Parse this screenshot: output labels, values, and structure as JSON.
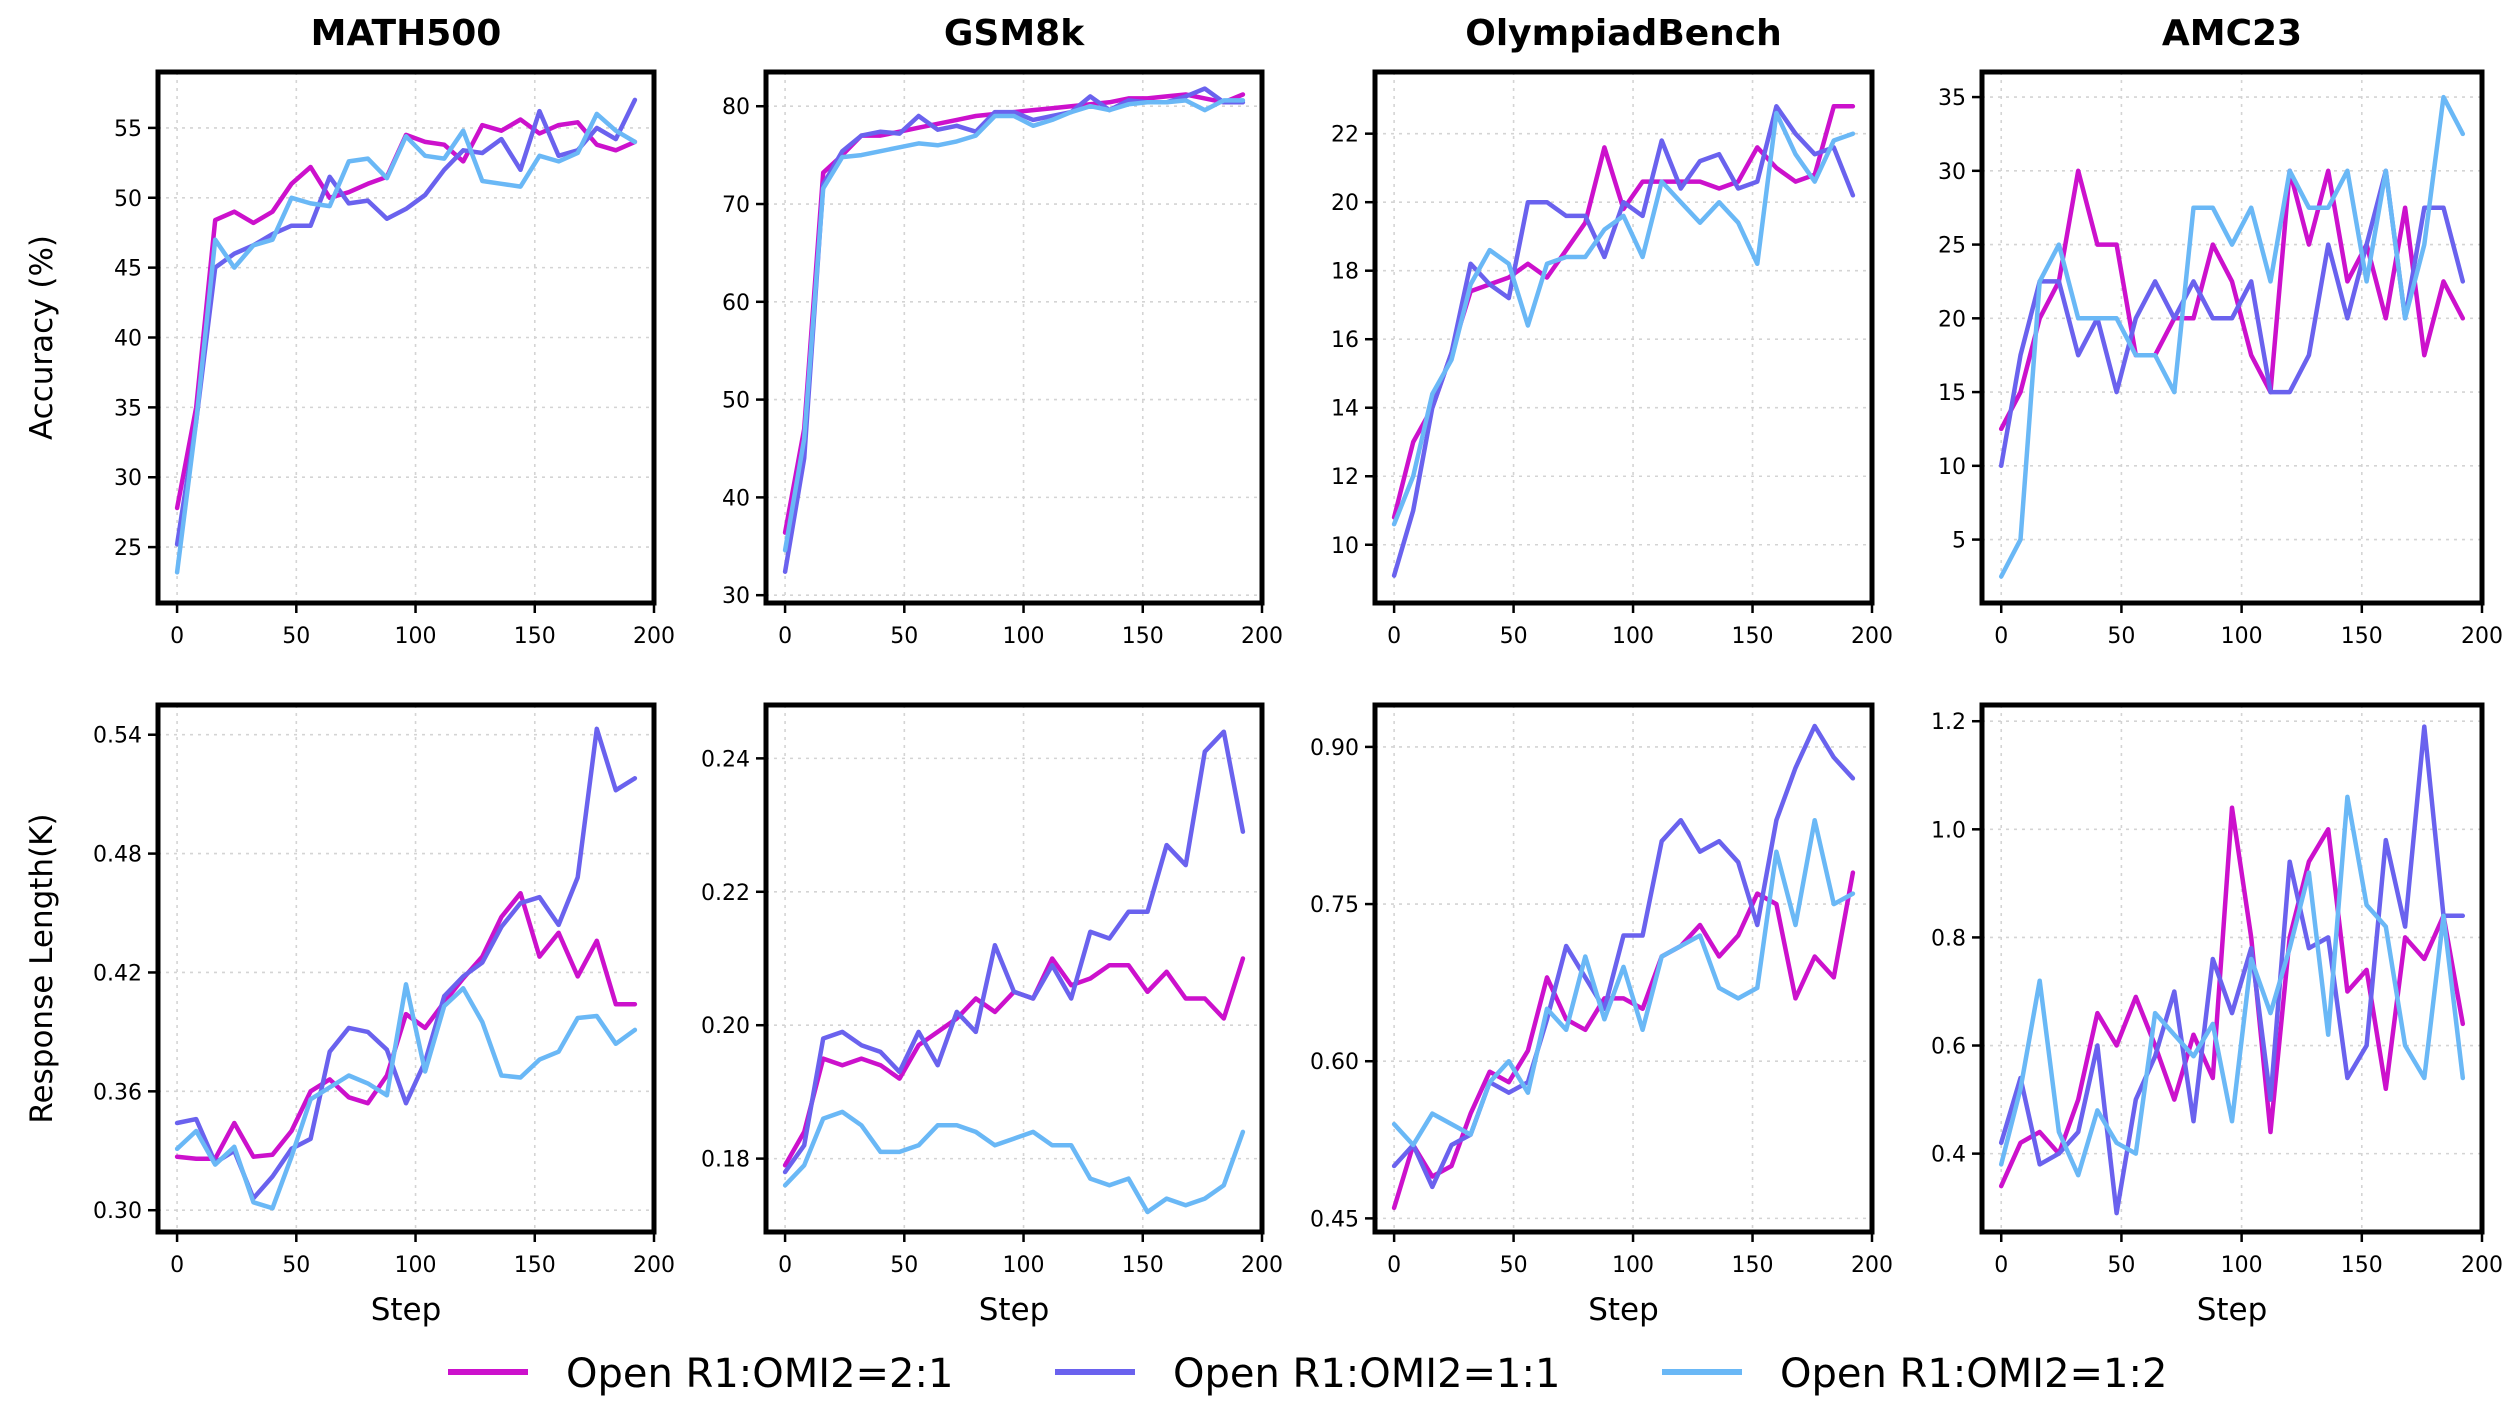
{
  "colors": {
    "r21": "#cc11cc",
    "r11": "#6a62ee",
    "r12": "#6ab8f6"
  },
  "legend": [
    {
      "key": "r21",
      "label": "Open R1:OMI2=2:1"
    },
    {
      "key": "r11",
      "label": "Open R1:OMI2=1:1"
    },
    {
      "key": "r12",
      "label": "Open R1:OMI2=1:2"
    }
  ],
  "chart_data": [
    {
      "id": "acc-math500",
      "type": "line",
      "title": "MATH500",
      "xlabel": "",
      "ylabel": "Accuracy (%)",
      "xlim": [
        -8,
        200
      ],
      "ylim": [
        21,
        59
      ],
      "xticks": [
        0,
        50,
        100,
        150,
        200
      ],
      "yticks": [
        25,
        30,
        35,
        40,
        45,
        50,
        55
      ],
      "ytick_labels": [
        "25",
        "30",
        "35",
        "40",
        "45",
        "50",
        "55"
      ],
      "x": [
        0,
        8,
        16,
        24,
        32,
        40,
        48,
        56,
        64,
        72,
        80,
        88,
        96,
        104,
        112,
        120,
        128,
        136,
        144,
        152,
        160,
        168,
        176,
        184,
        192
      ],
      "series": [
        {
          "key": "r21",
          "values": [
            27.8,
            35,
            48.4,
            49,
            48.2,
            49,
            51,
            52.2,
            50,
            50.4,
            51,
            51.5,
            54.5,
            54,
            53.8,
            52.6,
            55.2,
            54.8,
            55.6,
            54.6,
            55.2,
            55.4,
            53.8,
            53.4,
            54
          ]
        },
        {
          "key": "r11",
          "values": [
            25.2,
            34,
            45,
            46,
            46.6,
            47.4,
            48,
            48,
            51.5,
            49.6,
            49.8,
            48.5,
            49.2,
            50.2,
            52,
            53.4,
            53.2,
            54.2,
            52,
            56.2,
            53,
            53.4,
            55,
            54.2,
            57
          ]
        },
        {
          "key": "r12",
          "values": [
            23.2,
            34,
            47,
            45,
            46.6,
            47,
            50,
            49.6,
            49.4,
            52.6,
            52.8,
            51.4,
            54.4,
            53,
            52.8,
            54.8,
            51.2,
            51,
            50.8,
            53,
            52.6,
            53.2,
            56,
            54.8,
            54
          ]
        }
      ]
    },
    {
      "id": "acc-gsm8k",
      "type": "line",
      "title": "GSM8k",
      "xlabel": "",
      "ylabel": "",
      "xlim": [
        -8,
        200
      ],
      "ylim": [
        29.2,
        83.5
      ],
      "xticks": [
        0,
        50,
        100,
        150,
        200
      ],
      "yticks": [
        30,
        40,
        50,
        60,
        70,
        80
      ],
      "ytick_labels": [
        "30",
        "40",
        "50",
        "60",
        "70",
        "80"
      ],
      "x": [
        0,
        8,
        16,
        24,
        32,
        40,
        48,
        56,
        64,
        72,
        80,
        88,
        96,
        104,
        112,
        120,
        128,
        136,
        144,
        152,
        160,
        168,
        176,
        184,
        192
      ],
      "series": [
        {
          "key": "r21",
          "values": [
            36.4,
            47,
            73.2,
            75,
            77,
            77,
            77.4,
            77.8,
            78.2,
            78.6,
            79,
            79.2,
            79.4,
            79.6,
            79.8,
            80,
            80.2,
            80.4,
            80.8,
            80.8,
            81,
            81.2,
            80.8,
            80.4,
            81.2
          ]
        },
        {
          "key": "r11",
          "values": [
            32.4,
            44,
            72,
            75.4,
            77,
            77.4,
            77.2,
            79,
            77.6,
            78,
            77.4,
            79.4,
            79.4,
            78.6,
            79,
            79.4,
            81,
            79.6,
            80.6,
            80.4,
            80.4,
            81,
            81.8,
            80.4,
            80.4
          ]
        },
        {
          "key": "r12",
          "values": [
            34.6,
            46,
            71.6,
            74.8,
            75,
            75.4,
            75.8,
            76.2,
            76,
            76.4,
            77,
            79,
            79,
            78,
            78.6,
            79.4,
            80,
            79.6,
            80.2,
            80.4,
            80.4,
            80.6,
            79.6,
            80.6,
            80.6
          ]
        }
      ]
    },
    {
      "id": "acc-olympiad",
      "type": "line",
      "title": "OlympiadBench",
      "xlabel": "",
      "ylabel": "",
      "xlim": [
        -8,
        200
      ],
      "ylim": [
        8.3,
        23.8
      ],
      "xticks": [
        0,
        50,
        100,
        150,
        200
      ],
      "yticks": [
        10,
        12,
        14,
        16,
        18,
        20,
        22
      ],
      "ytick_labels": [
        "10",
        "12",
        "14",
        "16",
        "18",
        "20",
        "22"
      ],
      "x": [
        0,
        8,
        16,
        24,
        32,
        40,
        48,
        56,
        64,
        72,
        80,
        88,
        96,
        104,
        112,
        120,
        128,
        136,
        144,
        152,
        160,
        168,
        176,
        184,
        192
      ],
      "series": [
        {
          "key": "r21",
          "values": [
            10.8,
            13,
            14,
            15.6,
            17.4,
            17.6,
            17.8,
            18.2,
            17.8,
            18.6,
            19.4,
            21.6,
            19.8,
            20.6,
            20.6,
            20.6,
            20.6,
            20.4,
            20.6,
            21.6,
            21,
            20.6,
            20.8,
            22.8,
            22.8
          ]
        },
        {
          "key": "r11",
          "values": [
            9.1,
            11,
            14,
            15.6,
            18.2,
            17.6,
            17.2,
            20,
            20,
            19.6,
            19.6,
            18.4,
            20,
            19.6,
            21.8,
            20.4,
            21.2,
            21.4,
            20.4,
            20.6,
            22.8,
            22,
            21.4,
            21.6,
            20.2
          ]
        },
        {
          "key": "r12",
          "values": [
            10.6,
            12,
            14.4,
            15.4,
            17.6,
            18.6,
            18.2,
            16.4,
            18.2,
            18.4,
            18.4,
            19.2,
            19.6,
            18.4,
            20.6,
            20,
            19.4,
            20,
            19.4,
            18.2,
            22.6,
            21.4,
            20.6,
            21.8,
            22
          ]
        }
      ]
    },
    {
      "id": "acc-amc23",
      "type": "line",
      "title": "AMC23",
      "xlabel": "",
      "ylabel": "",
      "xlim": [
        -8,
        200
      ],
      "ylim": [
        0.7,
        36.7
      ],
      "xticks": [
        0,
        50,
        100,
        150,
        200
      ],
      "yticks": [
        5,
        10,
        15,
        20,
        25,
        30,
        35
      ],
      "ytick_labels": [
        "5",
        "10",
        "15",
        "20",
        "25",
        "30",
        "35"
      ],
      "x": [
        0,
        8,
        16,
        24,
        32,
        40,
        48,
        56,
        64,
        72,
        80,
        88,
        96,
        104,
        112,
        120,
        128,
        136,
        144,
        152,
        160,
        168,
        176,
        184,
        192
      ],
      "series": [
        {
          "key": "r21",
          "values": [
            12.5,
            15,
            20,
            22.5,
            30,
            25,
            25,
            17.5,
            17.5,
            20,
            20,
            25,
            22.5,
            17.5,
            15,
            30,
            25,
            30,
            22.5,
            25,
            20,
            27.5,
            17.5,
            22.5,
            20
          ]
        },
        {
          "key": "r11",
          "values": [
            10,
            17.5,
            22.5,
            22.5,
            17.5,
            20,
            15,
            20,
            22.5,
            20,
            22.5,
            20,
            20,
            22.5,
            15,
            15,
            17.5,
            25,
            20,
            25,
            30,
            20,
            27.5,
            27.5,
            22.5
          ]
        },
        {
          "key": "r12",
          "values": [
            2.5,
            5,
            22.5,
            25,
            20,
            20,
            20,
            17.5,
            17.5,
            15,
            27.5,
            27.5,
            25,
            27.5,
            22.5,
            30,
            27.5,
            27.5,
            30,
            22.5,
            30,
            20,
            25,
            35,
            32.5
          ]
        }
      ]
    },
    {
      "id": "len-math500",
      "type": "line",
      "title": "",
      "xlabel": "Step",
      "ylabel": "Response Length(K)",
      "xlim": [
        -8,
        200
      ],
      "ylim": [
        0.289,
        0.555
      ],
      "xticks": [
        0,
        50,
        100,
        150,
        200
      ],
      "yticks": [
        0.3,
        0.36,
        0.42,
        0.48,
        0.54
      ],
      "ytick_labels": [
        "0.30",
        "0.36",
        "0.42",
        "0.48",
        "0.54"
      ],
      "x": [
        0,
        8,
        16,
        24,
        32,
        40,
        48,
        56,
        64,
        72,
        80,
        88,
        96,
        104,
        112,
        120,
        128,
        136,
        144,
        152,
        160,
        168,
        176,
        184,
        192
      ],
      "series": [
        {
          "key": "r21",
          "values": [
            0.327,
            0.326,
            0.326,
            0.344,
            0.327,
            0.328,
            0.34,
            0.36,
            0.366,
            0.357,
            0.354,
            0.368,
            0.399,
            0.392,
            0.405,
            0.417,
            0.428,
            0.448,
            0.46,
            0.428,
            0.44,
            0.418,
            0.436,
            0.404,
            0.404
          ]
        },
        {
          "key": "r11",
          "values": [
            0.344,
            0.346,
            0.324,
            0.33,
            0.306,
            0.317,
            0.331,
            0.336,
            0.38,
            0.392,
            0.39,
            0.381,
            0.354,
            0.375,
            0.408,
            0.418,
            0.425,
            0.443,
            0.455,
            0.458,
            0.444,
            0.468,
            0.543,
            0.512,
            0.518
          ]
        },
        {
          "key": "r12",
          "values": [
            0.331,
            0.34,
            0.323,
            0.332,
            0.304,
            0.301,
            0.327,
            0.356,
            0.362,
            0.368,
            0.364,
            0.358,
            0.414,
            0.37,
            0.403,
            0.412,
            0.395,
            0.368,
            0.367,
            0.376,
            0.38,
            0.397,
            0.398,
            0.384,
            0.391
          ]
        }
      ]
    },
    {
      "id": "len-gsm8k",
      "type": "line",
      "title": "",
      "xlabel": "Step",
      "ylabel": "",
      "xlim": [
        -8,
        200
      ],
      "ylim": [
        0.169,
        0.248
      ],
      "xticks": [
        0,
        50,
        100,
        150,
        200
      ],
      "yticks": [
        0.18,
        0.2,
        0.22,
        0.24
      ],
      "ytick_labels": [
        "0.18",
        "0.20",
        "0.22",
        "0.24"
      ],
      "x": [
        0,
        8,
        16,
        24,
        32,
        40,
        48,
        56,
        64,
        72,
        80,
        88,
        96,
        104,
        112,
        120,
        128,
        136,
        144,
        152,
        160,
        168,
        176,
        184,
        192
      ],
      "series": [
        {
          "key": "r21",
          "values": [
            0.179,
            0.184,
            0.195,
            0.194,
            0.195,
            0.194,
            0.192,
            0.197,
            0.199,
            0.201,
            0.204,
            0.202,
            0.205,
            0.204,
            0.21,
            0.206,
            0.207,
            0.209,
            0.209,
            0.205,
            0.208,
            0.204,
            0.204,
            0.201,
            0.21
          ]
        },
        {
          "key": "r11",
          "values": [
            0.178,
            0.182,
            0.198,
            0.199,
            0.197,
            0.196,
            0.193,
            0.199,
            0.194,
            0.202,
            0.199,
            0.212,
            0.205,
            0.204,
            0.209,
            0.204,
            0.214,
            0.213,
            0.217,
            0.217,
            0.227,
            0.224,
            0.241,
            0.244,
            0.229
          ]
        },
        {
          "key": "r12",
          "values": [
            0.176,
            0.179,
            0.186,
            0.187,
            0.185,
            0.181,
            0.181,
            0.182,
            0.185,
            0.185,
            0.184,
            0.182,
            0.183,
            0.184,
            0.182,
            0.182,
            0.177,
            0.176,
            0.177,
            0.172,
            0.174,
            0.173,
            0.174,
            0.176,
            0.184
          ]
        }
      ]
    },
    {
      "id": "len-olympiad",
      "type": "line",
      "title": "",
      "xlabel": "Step",
      "ylabel": "",
      "xlim": [
        -8,
        200
      ],
      "ylim": [
        0.437,
        0.94
      ],
      "xticks": [
        0,
        50,
        100,
        150,
        200
      ],
      "yticks": [
        0.45,
        0.6,
        0.75,
        0.9
      ],
      "ytick_labels": [
        "0.45",
        "0.60",
        "0.75",
        "0.90"
      ],
      "x": [
        0,
        8,
        16,
        24,
        32,
        40,
        48,
        56,
        64,
        72,
        80,
        88,
        96,
        104,
        112,
        120,
        128,
        136,
        144,
        152,
        160,
        168,
        176,
        184,
        192
      ],
      "series": [
        {
          "key": "r21",
          "values": [
            0.46,
            0.52,
            0.49,
            0.5,
            0.55,
            0.59,
            0.58,
            0.61,
            0.68,
            0.64,
            0.63,
            0.66,
            0.66,
            0.65,
            0.7,
            0.71,
            0.73,
            0.7,
            0.72,
            0.76,
            0.75,
            0.66,
            0.7,
            0.68,
            0.78
          ]
        },
        {
          "key": "r11",
          "values": [
            0.5,
            0.52,
            0.48,
            0.52,
            0.53,
            0.58,
            0.57,
            0.58,
            0.64,
            0.71,
            0.68,
            0.65,
            0.72,
            0.72,
            0.81,
            0.83,
            0.8,
            0.81,
            0.79,
            0.73,
            0.83,
            0.88,
            0.92,
            0.89,
            0.87
          ]
        },
        {
          "key": "r12",
          "values": [
            0.54,
            0.52,
            0.55,
            0.54,
            0.53,
            0.58,
            0.6,
            0.57,
            0.65,
            0.63,
            0.7,
            0.64,
            0.69,
            0.63,
            0.7,
            0.71,
            0.72,
            0.67,
            0.66,
            0.67,
            0.8,
            0.73,
            0.83,
            0.75,
            0.76
          ]
        }
      ]
    },
    {
      "id": "len-amc23",
      "type": "line",
      "title": "",
      "xlabel": "Step",
      "ylabel": "",
      "xlim": [
        -8,
        200
      ],
      "ylim": [
        0.255,
        1.23
      ],
      "xticks": [
        0,
        50,
        100,
        150,
        200
      ],
      "yticks": [
        0.4,
        0.6,
        0.8,
        1.0,
        1.2
      ],
      "ytick_labels": [
        "0.4",
        "0.6",
        "0.8",
        "1.0",
        "1.2"
      ],
      "x": [
        0,
        8,
        16,
        24,
        32,
        40,
        48,
        56,
        64,
        72,
        80,
        88,
        96,
        104,
        112,
        120,
        128,
        136,
        144,
        152,
        160,
        168,
        176,
        184,
        192
      ],
      "series": [
        {
          "key": "r21",
          "values": [
            0.34,
            0.42,
            0.44,
            0.4,
            0.5,
            0.66,
            0.6,
            0.69,
            0.6,
            0.5,
            0.62,
            0.54,
            1.04,
            0.8,
            0.44,
            0.8,
            0.94,
            1.0,
            0.7,
            0.74,
            0.52,
            0.8,
            0.76,
            0.84,
            0.64
          ]
        },
        {
          "key": "r11",
          "values": [
            0.42,
            0.54,
            0.38,
            0.4,
            0.44,
            0.6,
            0.29,
            0.5,
            0.58,
            0.7,
            0.46,
            0.76,
            0.66,
            0.78,
            0.5,
            0.94,
            0.78,
            0.8,
            0.54,
            0.6,
            0.98,
            0.82,
            1.19,
            0.84,
            0.84
          ]
        },
        {
          "key": "r12",
          "values": [
            0.38,
            0.52,
            0.72,
            0.44,
            0.36,
            0.48,
            0.42,
            0.4,
            0.66,
            0.62,
            0.58,
            0.64,
            0.46,
            0.76,
            0.66,
            0.78,
            0.92,
            0.62,
            1.06,
            0.86,
            0.82,
            0.6,
            0.54,
            0.84,
            0.54
          ]
        }
      ]
    }
  ]
}
